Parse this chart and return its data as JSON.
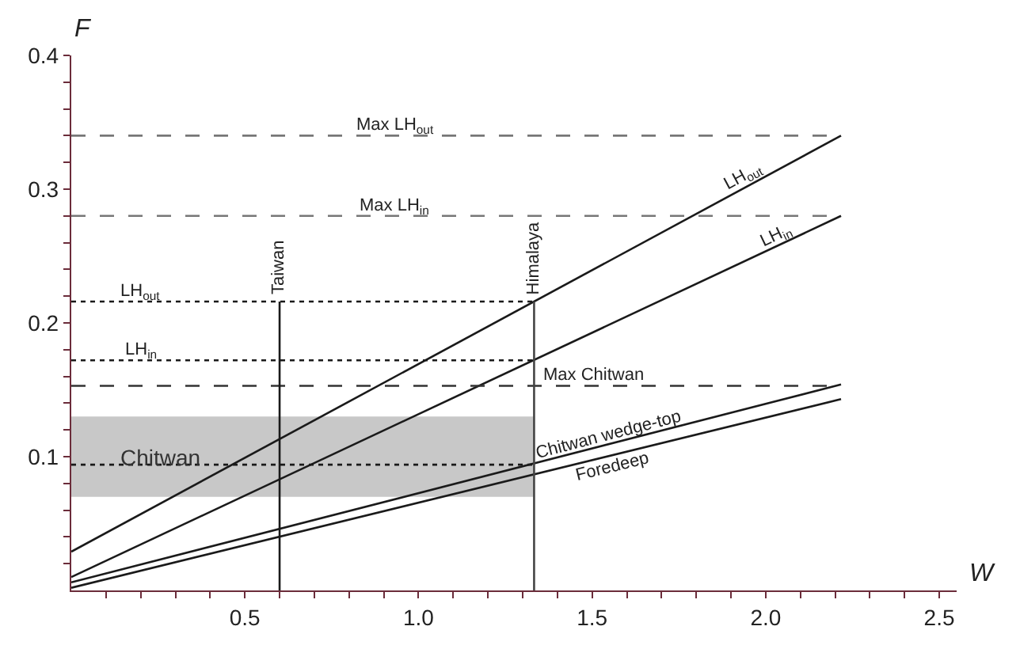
{
  "chart_data": {
    "type": "line",
    "xlabel": "W",
    "ylabel": "F",
    "legend": false,
    "marker": "none",
    "xlim": [
      0,
      2.55
    ],
    "ylim": [
      0,
      0.4
    ],
    "xticks": [
      {
        "value": 0.1,
        "label": null
      },
      {
        "value": 0.2,
        "label": null
      },
      {
        "value": 0.3,
        "label": null
      },
      {
        "value": 0.4,
        "label": null
      },
      {
        "value": 0.5,
        "label": "0.5"
      },
      {
        "value": 0.6,
        "label": null
      },
      {
        "value": 0.7,
        "label": null
      },
      {
        "value": 0.8,
        "label": null
      },
      {
        "value": 0.9,
        "label": null
      },
      {
        "value": 1.0,
        "label": "1.0"
      },
      {
        "value": 1.1,
        "label": null
      },
      {
        "value": 1.2,
        "label": null
      },
      {
        "value": 1.3,
        "label": null
      },
      {
        "value": 1.4,
        "label": null
      },
      {
        "value": 1.5,
        "label": "1.5"
      },
      {
        "value": 1.6,
        "label": null
      },
      {
        "value": 1.7,
        "label": null
      },
      {
        "value": 1.8,
        "label": null
      },
      {
        "value": 1.9,
        "label": null
      },
      {
        "value": 2.0,
        "label": "2.0"
      },
      {
        "value": 2.1,
        "label": null
      },
      {
        "value": 2.2,
        "label": null
      },
      {
        "value": 2.3,
        "label": null
      },
      {
        "value": 2.4,
        "label": null
      },
      {
        "value": 2.5,
        "label": "2.5"
      }
    ],
    "yticks": [
      {
        "value": 0.02,
        "label": null
      },
      {
        "value": 0.04,
        "label": null
      },
      {
        "value": 0.06,
        "label": null
      },
      {
        "value": 0.08,
        "label": null
      },
      0.1,
      {
        "value": 0.12,
        "label": null
      },
      {
        "value": 0.14,
        "label": null
      },
      {
        "value": 0.16,
        "label": null
      },
      {
        "value": 0.18,
        "label": null
      },
      0.2,
      {
        "value": 0.22,
        "label": null
      },
      {
        "value": 0.24,
        "label": null
      },
      {
        "value": 0.26,
        "label": null
      },
      {
        "value": 0.28,
        "label": null
      },
      0.3,
      {
        "value": 0.32,
        "label": null
      },
      {
        "value": 0.34,
        "label": null
      },
      {
        "value": 0.36,
        "label": null
      },
      {
        "value": 0.38,
        "label": null
      },
      0.4
    ],
    "bands": [
      {
        "axis": "y",
        "from": 0.07,
        "to": 0.13,
        "label": "Chitwan",
        "color": "#c8c8c8"
      }
    ],
    "series": [
      {
        "name": "LH$_{out}$",
        "color": "#1a1a1a",
        "line_style": "solid",
        "x": [
          0,
          2.217
        ],
        "values": [
          0.029,
          0.34
        ]
      },
      {
        "name": "LH$_{in}$",
        "color": "#1a1a1a",
        "line_style": "solid",
        "x": [
          0,
          2.217
        ],
        "values": [
          0.01,
          0.28
        ]
      },
      {
        "name": "Chitwan wedge-top",
        "color": "#1a1a1a",
        "line_style": "solid",
        "x": [
          0,
          2.217
        ],
        "values": [
          0.006,
          0.154
        ]
      },
      {
        "name": "Foredeep",
        "color": "#1a1a1a",
        "line_style": "solid",
        "x": [
          0,
          2.217
        ],
        "values": [
          0.002,
          0.143
        ]
      },
      {
        "name": "Max LH$_{out}$",
        "color": "#777777",
        "line_style": "dashed",
        "x": [
          0,
          2.217
        ],
        "values": [
          0.34,
          0.34
        ]
      },
      {
        "name": "Max LH$_{in}$",
        "color": "#777777",
        "line_style": "dashed",
        "x": [
          0,
          2.217
        ],
        "values": [
          0.28,
          0.28
        ]
      },
      {
        "name": "Max Chitwan",
        "color": "#333333",
        "line_style": "dashed",
        "x": [
          0,
          2.217
        ],
        "values": [
          0.153,
          0.153
        ]
      },
      {
        "name": "LH$_{out}$",
        "color": "#1a1a1a",
        "line_style": "dotted",
        "x": [
          0,
          1.333
        ],
        "values": [
          0.216,
          0.216
        ]
      },
      {
        "name": "LH$_{in}$",
        "color": "#1a1a1a",
        "line_style": "dotted",
        "x": [
          0,
          1.333
        ],
        "values": [
          0.172,
          0.172
        ]
      },
      {
        "color": "#1a1a1a",
        "line_style": "dotted",
        "x": [
          0,
          1.333
        ],
        "values": [
          0.094,
          0.094
        ]
      },
      {
        "name": "Taiwan",
        "color": "#1a1a1a",
        "line_style": "solid",
        "x": [
          0.6,
          0.6
        ],
        "values": [
          0,
          0.216
        ]
      },
      {
        "name": "Himalaya",
        "color": "#444444",
        "line_style": "solid",
        "x": [
          1.333,
          1.333
        ],
        "values": [
          0,
          0.216
        ]
      }
    ]
  }
}
